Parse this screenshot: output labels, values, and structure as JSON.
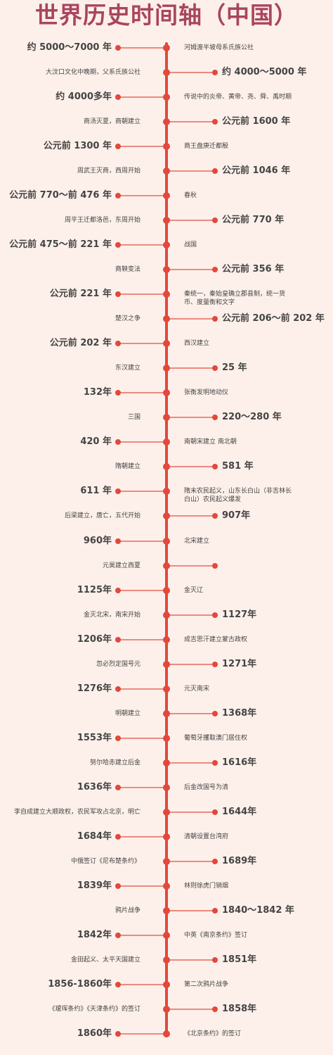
{
  "title": "世界历史时间轴（中国）",
  "entries": [
    {
      "date": "约 5000～7000 年",
      "event": "河姆渡半坡母系氏族公社",
      "date_side": "left"
    },
    {
      "date": "约 4000～5000 年",
      "event": "大汶口文化中晚期，父系氏族公社",
      "date_side": "right"
    },
    {
      "date": "约 4000多年",
      "event": "传说中的炎帝、黄帝、尧、舜、禹时期",
      "date_side": "left"
    },
    {
      "date": "公元前 1600 年",
      "event": "商汤灭夏，商朝建立",
      "date_side": "right"
    },
    {
      "date": "公元前 1300 年",
      "event": "商王盘庚迁都殷",
      "date_side": "left"
    },
    {
      "date": "公元前 1046 年",
      "event": "周武王灭商，西周开始",
      "date_side": "right"
    },
    {
      "date": "公元前 770～前 476 年",
      "event": "春秋",
      "date_side": "left"
    },
    {
      "date": "公元前 770 年",
      "event": "周平王迁都洛邑，东周开始",
      "date_side": "right"
    },
    {
      "date": "公元前 475～前 221 年",
      "event": "战国",
      "date_side": "left"
    },
    {
      "date": "公元前 356 年",
      "event": "商鞅变法",
      "date_side": "right"
    },
    {
      "date": "公元前 221 年",
      "event": "秦统一，秦始皇确立郡县制，统一货币、度量衡和文字",
      "date_side": "left"
    },
    {
      "date": "公元前 206～前 202 年",
      "event": "楚汉之争",
      "date_side": "right"
    },
    {
      "date": "公元前 202 年",
      "event": "西汉建立",
      "date_side": "left"
    },
    {
      "date": "25 年",
      "event": "东汉建立",
      "date_side": "right"
    },
    {
      "date": "132年",
      "event": "张衡发明地动仪",
      "date_side": "left"
    },
    {
      "date": "220～280 年",
      "event": "三国",
      "date_side": "right"
    },
    {
      "date": "420 年",
      "event": "南朝宋建立 南北朝",
      "date_side": "left"
    },
    {
      "date": "581 年",
      "event": "隋朝建立",
      "date_side": "right"
    },
    {
      "date": "611 年",
      "event": "隋末农民起义，山东长白山（非吉林长白山）农民起义爆发",
      "date_side": "left"
    },
    {
      "date": "907年",
      "event": "后梁建立，唐亡，五代开始",
      "date_side": "right"
    },
    {
      "date": "960年",
      "event": "北宋建立",
      "date_side": "left"
    },
    {
      "date": "",
      "event": "元昊建立西夏",
      "date_side": "right"
    },
    {
      "date": "1125年",
      "event": "金灭辽",
      "date_side": "left"
    },
    {
      "date": "1127年",
      "event": "金灭北宋，南宋开始",
      "date_side": "right"
    },
    {
      "date": "1206年",
      "event": "成吉思汗建立蒙古政权",
      "date_side": "left"
    },
    {
      "date": "1271年",
      "event": "忽必烈定国号元",
      "date_side": "right"
    },
    {
      "date": "1276年",
      "event": "元灭南宋",
      "date_side": "left"
    },
    {
      "date": "1368年",
      "event": "明朝建立",
      "date_side": "right"
    },
    {
      "date": "1553年",
      "event": "葡萄牙攫取澳门居住权",
      "date_side": "left"
    },
    {
      "date": "1616年",
      "event": "努尔哈赤建立后金",
      "date_side": "right"
    },
    {
      "date": "1636年",
      "event": "后金改国号为清",
      "date_side": "left"
    },
    {
      "date": "1644年",
      "event": "李自成建立大顺政权，农民军攻占北京，明亡",
      "date_side": "right"
    },
    {
      "date": "1684年",
      "event": "清朝设置台湾府",
      "date_side": "left"
    },
    {
      "date": "1689年",
      "event": "中俄签订《尼布楚条约》",
      "date_side": "right"
    },
    {
      "date": "1839年",
      "event": "林则徐虎门销烟",
      "date_side": "left"
    },
    {
      "date": "1840～1842 年",
      "event": "鸦片战争",
      "date_side": "right"
    },
    {
      "date": "1842年",
      "event": "中英《南京条约》签订",
      "date_side": "left"
    },
    {
      "date": "1851年",
      "event": "金田起义、太平天国建立",
      "date_side": "right"
    },
    {
      "date": "1856-1860年",
      "event": "第二次鸦片战争",
      "date_side": "left"
    },
    {
      "date": "1858年",
      "event": "《瑷珲条约》《天津条约》的签订",
      "date_side": "right"
    },
    {
      "date": "1860年",
      "event": "《北京条约》的签订",
      "date_side": "left"
    }
  ],
  "colors": {
    "accent": "#e2483c",
    "title": "#a8455f",
    "background": "#fdf0ea"
  }
}
